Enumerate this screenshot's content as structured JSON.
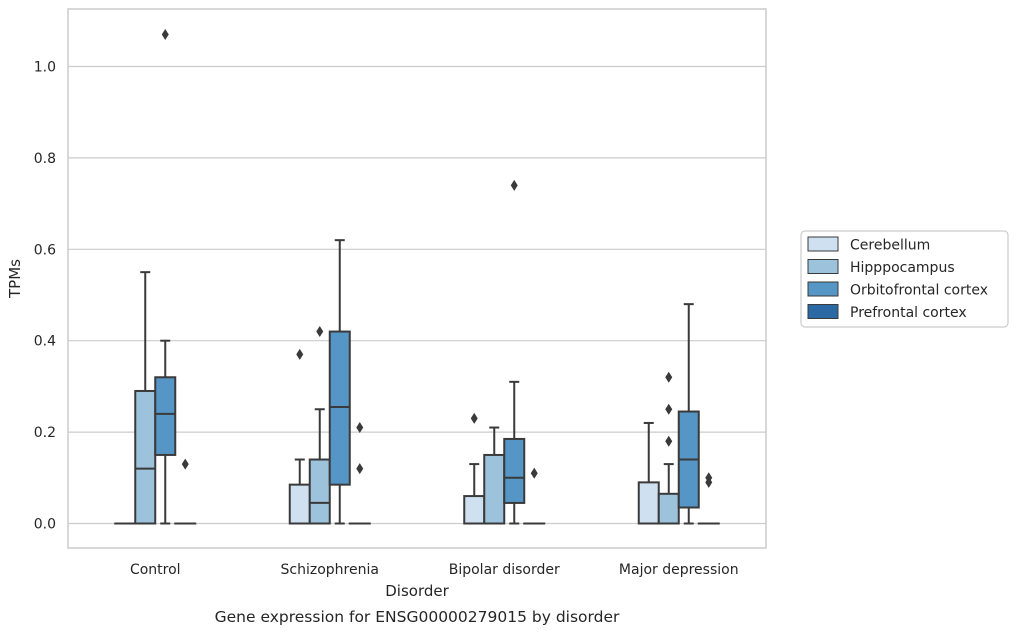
{
  "chart_data": {
    "type": "box",
    "caption": "Gene expression for ENSG00000279015 by disorder",
    "xlabel": "Disorder",
    "ylabel": "TPMs",
    "ylim": [
      -0.05,
      1.13
    ],
    "yticks": [
      0.0,
      0.2,
      0.4,
      0.6,
      0.8,
      1.0
    ],
    "ytick_labels": [
      "0.0",
      "0.2",
      "0.4",
      "0.6",
      "0.8",
      "1.0"
    ],
    "grid": "horizontal",
    "legend_position": "right",
    "categories": [
      "Control",
      "Schizophrenia",
      "Bipolar disorder",
      "Major depression"
    ],
    "series": [
      {
        "name": "Cerebellum",
        "color": "#cfe0f0",
        "boxes": [
          {
            "whislo": 0,
            "q1": 0,
            "med": 0,
            "q3": 0,
            "whishi": 0,
            "fliers": []
          },
          {
            "whislo": 0,
            "q1": 0,
            "med": 0,
            "q3": 0.085,
            "whishi": 0.14,
            "fliers": [
              0.37
            ]
          },
          {
            "whislo": 0,
            "q1": 0,
            "med": 0,
            "q3": 0.06,
            "whishi": 0.13,
            "fliers": [
              0.23
            ]
          },
          {
            "whislo": 0,
            "q1": 0,
            "med": 0,
            "q3": 0.09,
            "whishi": 0.22,
            "fliers": []
          }
        ]
      },
      {
        "name": "Hipppocampus",
        "color": "#9cc2dc",
        "boxes": [
          {
            "whislo": 0,
            "q1": 0,
            "med": 0.12,
            "q3": 0.29,
            "whishi": 0.55,
            "fliers": []
          },
          {
            "whislo": 0,
            "q1": 0,
            "med": 0.045,
            "q3": 0.14,
            "whishi": 0.25,
            "fliers": [
              0.42
            ]
          },
          {
            "whislo": 0,
            "q1": 0,
            "med": 0,
            "q3": 0.15,
            "whishi": 0.21,
            "fliers": []
          },
          {
            "whislo": 0,
            "q1": 0,
            "med": 0,
            "q3": 0.065,
            "whishi": 0.13,
            "fliers": [
              0.18,
              0.25,
              0.32
            ]
          }
        ]
      },
      {
        "name": "Orbitofrontal cortex",
        "color": "#5596c6",
        "boxes": [
          {
            "whislo": 0,
            "q1": 0.15,
            "med": 0.24,
            "q3": 0.32,
            "whishi": 0.4,
            "fliers": [
              1.07
            ]
          },
          {
            "whislo": 0,
            "q1": 0.085,
            "med": 0.255,
            "q3": 0.42,
            "whishi": 0.62,
            "fliers": []
          },
          {
            "whislo": 0,
            "q1": 0.045,
            "med": 0.1,
            "q3": 0.185,
            "whishi": 0.31,
            "fliers": [
              0.74
            ]
          },
          {
            "whislo": 0,
            "q1": 0.035,
            "med": 0.14,
            "q3": 0.245,
            "whishi": 0.48,
            "fliers": []
          }
        ]
      },
      {
        "name": "Prefrontal cortex",
        "color": "#2a69a4",
        "boxes": [
          {
            "whislo": 0,
            "q1": 0,
            "med": 0,
            "q3": 0,
            "whishi": 0,
            "fliers": [
              0.13
            ]
          },
          {
            "whislo": 0,
            "q1": 0,
            "med": 0,
            "q3": 0,
            "whishi": 0,
            "fliers": [
              0.12,
              0.21
            ]
          },
          {
            "whislo": 0,
            "q1": 0,
            "med": 0,
            "q3": 0,
            "whishi": 0,
            "fliers": [
              0.11
            ]
          },
          {
            "whislo": 0,
            "q1": 0,
            "med": 0,
            "q3": 0,
            "whishi": 0,
            "fliers": [
              0.09,
              0.1
            ]
          }
        ]
      }
    ]
  }
}
